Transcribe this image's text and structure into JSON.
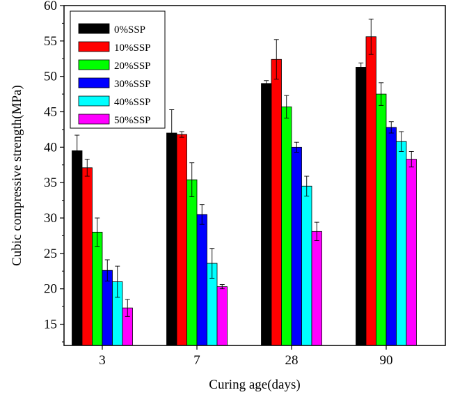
{
  "chart_data": {
    "type": "bar",
    "title": "",
    "xlabel": "Curing age(days)",
    "ylabel": "Cubic compressive strength(MPa)",
    "categories": [
      "3",
      "7",
      "28",
      "90"
    ],
    "ylim": [
      12,
      60
    ],
    "yticks": [
      15,
      20,
      25,
      30,
      35,
      40,
      45,
      50,
      55,
      60
    ],
    "legend_position": "top-left",
    "grid": false,
    "series": [
      {
        "name": "0%SSP",
        "color": "#000000",
        "values": [
          39.5,
          42.0,
          49.0,
          51.3
        ],
        "errors": [
          2.2,
          3.3,
          0.4,
          0.6
        ]
      },
      {
        "name": "10%SSP",
        "color": "#ff0000",
        "values": [
          37.1,
          41.8,
          52.4,
          55.6
        ],
        "errors": [
          1.2,
          0.4,
          2.8,
          2.5
        ]
      },
      {
        "name": "20%SSP",
        "color": "#00ff00",
        "values": [
          28.0,
          35.4,
          45.7,
          47.5
        ],
        "errors": [
          2.0,
          2.4,
          1.6,
          1.6
        ]
      },
      {
        "name": "30%SSP",
        "color": "#0000ff",
        "values": [
          22.6,
          30.5,
          40.0,
          42.8
        ],
        "errors": [
          1.5,
          1.4,
          0.7,
          0.8
        ]
      },
      {
        "name": "40%SSP",
        "color": "#00ffff",
        "values": [
          21.0,
          23.6,
          34.5,
          40.8
        ],
        "errors": [
          2.2,
          2.1,
          1.4,
          1.4
        ]
      },
      {
        "name": "50%SSP",
        "color": "#ff00ff",
        "values": [
          17.3,
          20.3,
          28.1,
          38.3
        ],
        "errors": [
          1.2,
          0.3,
          1.3,
          1.1
        ]
      }
    ]
  }
}
